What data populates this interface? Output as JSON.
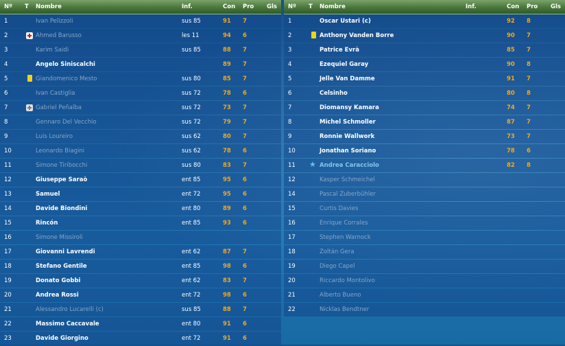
{
  "headers": {
    "num": "Nº",
    "t": "T",
    "name": "Nombre",
    "inf": "Inf.",
    "con": "Con",
    "pro": "Pro",
    "gls": "Gls"
  },
  "left_rows": [
    {
      "num": "1",
      "name": "Ivan Pelizzoli",
      "inf": "sus 85",
      "con": "91",
      "pro": "7",
      "active": false,
      "icon": ""
    },
    {
      "num": "2",
      "name": "Ahmed Barusso",
      "inf": "les 11",
      "con": "94",
      "pro": "6",
      "active": false,
      "icon": "medical-icon"
    },
    {
      "num": "3",
      "name": "Karim Saidi",
      "inf": "sus 85",
      "con": "88",
      "pro": "7",
      "active": false,
      "icon": ""
    },
    {
      "num": "4",
      "name": "Angelo Siniscalchi",
      "inf": "",
      "con": "89",
      "pro": "7",
      "active": true,
      "icon": ""
    },
    {
      "num": "5",
      "name": "Giandomenico Mesto",
      "inf": "sus 80",
      "con": "85",
      "pro": "7",
      "active": false,
      "icon": "yellow-card-icon"
    },
    {
      "num": "6",
      "name": "Ivan Castiglia",
      "inf": "sus 72",
      "con": "78",
      "pro": "6",
      "active": false,
      "icon": ""
    },
    {
      "num": "7",
      "name": "Gabriel Peñalba",
      "inf": "sus 72",
      "con": "73",
      "pro": "7",
      "active": false,
      "icon": "medical-gray-icon"
    },
    {
      "num": "8",
      "name": "Gennaro Del Vecchio",
      "inf": "sus 72",
      "con": "79",
      "pro": "7",
      "active": false,
      "icon": ""
    },
    {
      "num": "9",
      "name": "Luis Loureiro",
      "inf": "sus 62",
      "con": "80",
      "pro": "7",
      "active": false,
      "icon": ""
    },
    {
      "num": "10",
      "name": "Leonardo Biagini",
      "inf": "sus 62",
      "con": "78",
      "pro": "6",
      "active": false,
      "icon": ""
    },
    {
      "num": "11",
      "name": "Simone Tiribocchi",
      "inf": "sus 80",
      "con": "83",
      "pro": "7",
      "active": false,
      "icon": ""
    },
    {
      "num": "12",
      "name": "Giuseppe Saraò",
      "inf": "ent 85",
      "con": "95",
      "pro": "6",
      "active": true,
      "icon": ""
    },
    {
      "num": "13",
      "name": "Samuel",
      "inf": "ent 72",
      "con": "95",
      "pro": "6",
      "active": true,
      "icon": ""
    },
    {
      "num": "14",
      "name": "Davide Biondini",
      "inf": "ent 80",
      "con": "89",
      "pro": "6",
      "active": true,
      "icon": ""
    },
    {
      "num": "15",
      "name": "Rincón",
      "inf": "ent 85",
      "con": "93",
      "pro": "6",
      "active": true,
      "icon": ""
    },
    {
      "num": "16",
      "name": "Simone Missiroli",
      "inf": "",
      "con": "",
      "pro": "",
      "active": false,
      "icon": ""
    },
    {
      "num": "17",
      "name": "Giovanni Lavrendi",
      "inf": "ent 62",
      "con": "87",
      "pro": "7",
      "active": true,
      "icon": ""
    },
    {
      "num": "18",
      "name": "Stefano Gentile",
      "inf": "ent 85",
      "con": "98",
      "pro": "6",
      "active": true,
      "icon": ""
    },
    {
      "num": "19",
      "name": "Donato Gobbi",
      "inf": "ent 62",
      "con": "83",
      "pro": "7",
      "active": true,
      "icon": ""
    },
    {
      "num": "20",
      "name": "Andrea Rossi",
      "inf": "ent 72",
      "con": "98",
      "pro": "6",
      "active": true,
      "icon": ""
    },
    {
      "num": "21",
      "name": "Alessandro Lucarelli (c)",
      "inf": "sus 85",
      "con": "88",
      "pro": "7",
      "active": false,
      "icon": ""
    },
    {
      "num": "22",
      "name": "Massimo Caccavale",
      "inf": "ent 80",
      "con": "91",
      "pro": "6",
      "active": true,
      "icon": ""
    },
    {
      "num": "23",
      "name": "Davide Giorgino",
      "inf": "ent 72",
      "con": "91",
      "pro": "6",
      "active": true,
      "icon": ""
    }
  ],
  "right_rows": [
    {
      "num": "1",
      "name": "Oscar Ustari (c)",
      "inf": "",
      "con": "92",
      "pro": "8",
      "active": true,
      "icon": ""
    },
    {
      "num": "2",
      "name": "Anthony Vanden Borre",
      "inf": "",
      "con": "90",
      "pro": "7",
      "active": true,
      "icon": "yellow-card-icon"
    },
    {
      "num": "3",
      "name": "Patrice Evrà",
      "inf": "",
      "con": "85",
      "pro": "7",
      "active": true,
      "icon": ""
    },
    {
      "num": "4",
      "name": "Ezequiel Garay",
      "inf": "",
      "con": "90",
      "pro": "8",
      "active": true,
      "icon": ""
    },
    {
      "num": "5",
      "name": "Jelle Van Damme",
      "inf": "",
      "con": "91",
      "pro": "7",
      "active": true,
      "icon": ""
    },
    {
      "num": "6",
      "name": "Celsinho",
      "inf": "",
      "con": "80",
      "pro": "8",
      "active": true,
      "icon": ""
    },
    {
      "num": "7",
      "name": "Diomansy Kamara",
      "inf": "",
      "con": "74",
      "pro": "7",
      "active": true,
      "icon": ""
    },
    {
      "num": "8",
      "name": "Michel Schmoller",
      "inf": "",
      "con": "87",
      "pro": "7",
      "active": true,
      "icon": ""
    },
    {
      "num": "9",
      "name": "Ronnie Wallwork",
      "inf": "",
      "con": "73",
      "pro": "7",
      "active": true,
      "icon": ""
    },
    {
      "num": "10",
      "name": "Jonathan Soriano",
      "inf": "",
      "con": "78",
      "pro": "6",
      "active": true,
      "icon": ""
    },
    {
      "num": "11",
      "name": "Andrea Caracciolo",
      "inf": "",
      "con": "82",
      "pro": "8",
      "active": true,
      "icon": "star-icon",
      "name_color": "#7fc8ef"
    },
    {
      "num": "12",
      "name": "Kasper Schmeichel",
      "inf": "",
      "con": "",
      "pro": "",
      "active": false,
      "icon": ""
    },
    {
      "num": "14",
      "name": "Pascal Zuberbühler",
      "inf": "",
      "con": "",
      "pro": "",
      "active": false,
      "icon": ""
    },
    {
      "num": "15",
      "name": "Curtis Davies",
      "inf": "",
      "con": "",
      "pro": "",
      "active": false,
      "icon": ""
    },
    {
      "num": "16",
      "name": "Enrique Corrales",
      "inf": "",
      "con": "",
      "pro": "",
      "active": false,
      "icon": ""
    },
    {
      "num": "17",
      "name": "Stephen Warnock",
      "inf": "",
      "con": "",
      "pro": "",
      "active": false,
      "icon": ""
    },
    {
      "num": "18",
      "name": "Zoltán Gera",
      "inf": "",
      "con": "",
      "pro": "",
      "active": false,
      "icon": ""
    },
    {
      "num": "19",
      "name": "Diego Capel",
      "inf": "",
      "con": "",
      "pro": "",
      "active": false,
      "icon": ""
    },
    {
      "num": "20",
      "name": "Riccardo Montolivo",
      "inf": "",
      "con": "",
      "pro": "",
      "active": false,
      "icon": ""
    },
    {
      "num": "21",
      "name": "Alberto Bueno",
      "inf": "",
      "con": "",
      "pro": "",
      "active": false,
      "icon": ""
    },
    {
      "num": "22",
      "name": "Nicklas Bendtner",
      "inf": "",
      "con": "",
      "pro": "",
      "active": false,
      "icon": ""
    }
  ]
}
